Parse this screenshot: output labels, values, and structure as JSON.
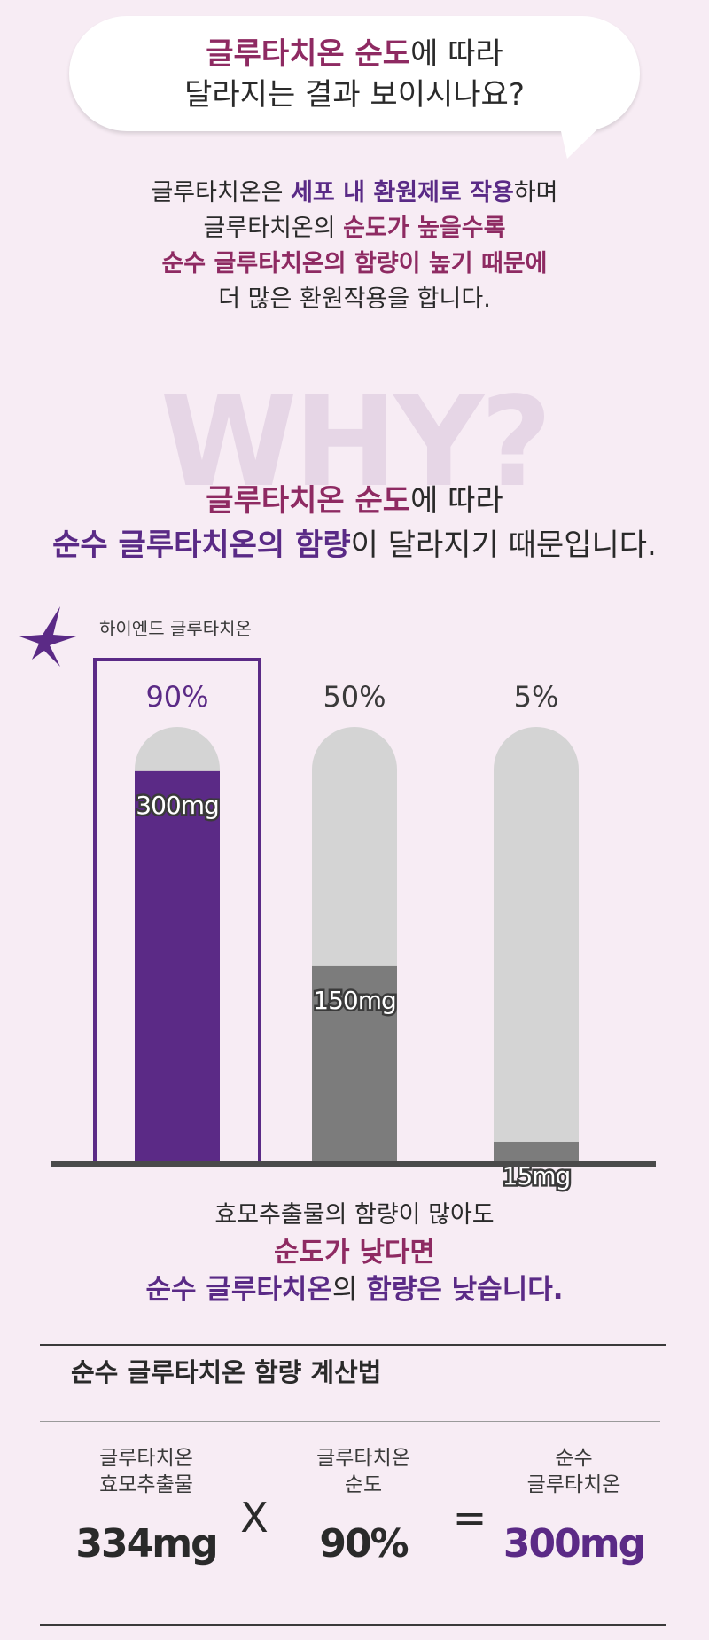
{
  "bubble": {
    "line1_hl": "글루타치온 순도",
    "line1_rest": "에 따라",
    "line2": "달라지는 결과 보이시나요?"
  },
  "para": {
    "l1a": "글루타치온은 ",
    "l1b": "세포 내 환원제로 작용",
    "l1c": "하며",
    "l2a": "글루타치온의 ",
    "l2b": "순도가 높을수록",
    "l3": "순수 글루타치온의 함량이 높기 때문에",
    "l4": "더 많은 환원작용을 합니다."
  },
  "why": {
    "bg_word": "WHY?",
    "l1a": "글루타치온 순도",
    "l1b": "에 따라",
    "l2a": "순수 글루타치온의 함량",
    "l2b": "이 달라지기 때문입니다."
  },
  "colors": {
    "purple": "#5b2a86",
    "magenta": "#8e2a62",
    "gray_dark": "#7c7c7c",
    "gray_light": "#d4d4d4"
  },
  "chart_data": {
    "type": "bar",
    "highlight_label": "하이엔드 글루타치온",
    "categories": [
      "90%",
      "50%",
      "5%"
    ],
    "values": [
      300,
      150,
      15
    ],
    "value_labels": [
      "300mg",
      "150mg",
      "15mg"
    ],
    "value_unit": "mg",
    "ylim": [
      0,
      334
    ],
    "highlight_index": 0,
    "grid": false
  },
  "note": {
    "l1": "효모추출물의 함량이 많아도",
    "l2": "순도가 낮다면",
    "l3a": "순수 글루타치온",
    "l3b": "의 ",
    "l3c": "함량은 낮습니다."
  },
  "calc": {
    "title": "순수 글루타치온 함량 계산법",
    "a_label1": "글루타치온",
    "a_label2": "효모추출물",
    "a_value": "334mg",
    "op1": "X",
    "b_label1": "글루타치온",
    "b_label2": "순도",
    "b_value": "90%",
    "op2": "=",
    "c_label1": "순수",
    "c_label2": "글루타치온",
    "c_value": "300mg"
  }
}
